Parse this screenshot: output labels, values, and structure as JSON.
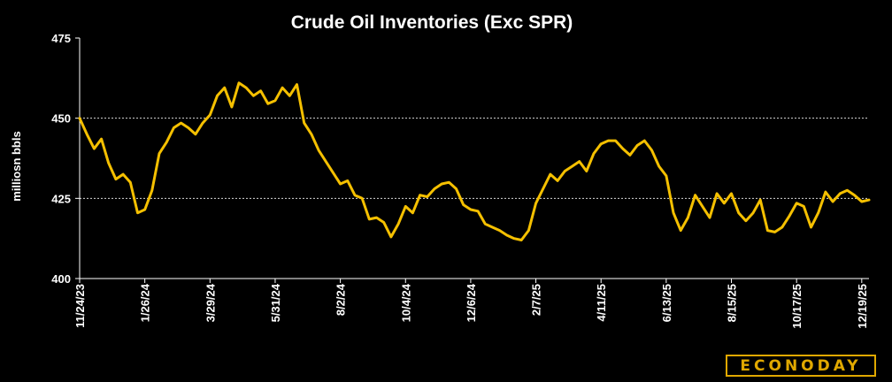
{
  "brand": {
    "name": "ECONODAY",
    "color": "#e0a800"
  },
  "chart_data": {
    "type": "line",
    "title": "Crude Oil Inventories (Exc SPR)",
    "ylabel": "milliosn bbls",
    "xlabel": "",
    "ylim": [
      400,
      475
    ],
    "yticks": [
      400,
      425,
      450,
      475
    ],
    "gridlines": [
      425,
      450
    ],
    "grid": true,
    "line_color": "#f5c000",
    "x_tick_labels": [
      "11/24/23",
      "1/26/24",
      "3/29/24",
      "5/31/24",
      "8/2/24",
      "10/4/24",
      "12/6/24",
      "2/7/25",
      "4/11/25",
      "6/13/25",
      "8/15/25",
      "10/17/25",
      "12/19/25"
    ],
    "series": [
      {
        "values": [
          450.0,
          445.0,
          440.5,
          443.5,
          436.0,
          431.0,
          432.5,
          430.0,
          420.5,
          421.5,
          427.5,
          439.0,
          442.5,
          447.0,
          448.5,
          447.0,
          445.0,
          448.5,
          451.0,
          457.0,
          459.5,
          453.5,
          461.0,
          459.5,
          457.0,
          458.5,
          454.5,
          455.5,
          459.5,
          457.0,
          460.5,
          448.5,
          445.0,
          440.0,
          436.5,
          433.0,
          429.5,
          430.5,
          426.0,
          425.0,
          418.5,
          419.0,
          417.5,
          413.0,
          417.0,
          422.5,
          420.5,
          426.0,
          425.5,
          428.0,
          429.5,
          430.0,
          428.0,
          423.0,
          421.5,
          421.0,
          417.0,
          416.0,
          415.0,
          413.5,
          412.5,
          412.0,
          415.0,
          423.5,
          428.0,
          432.5,
          430.5,
          433.5,
          435.0,
          436.5,
          433.5,
          439.0,
          442.0,
          443.0,
          443.0,
          440.5,
          438.5,
          441.5,
          443.0,
          440.0,
          435.0,
          432.0,
          420.5,
          415.0,
          419.0,
          426.0,
          422.5,
          419.0,
          426.5,
          423.5,
          426.5,
          420.5,
          418.0,
          420.5,
          424.5,
          415.0,
          414.5,
          416.0,
          419.5,
          423.5,
          422.5,
          416.0,
          420.5,
          427.0,
          424.0,
          426.5,
          427.5,
          426.0,
          424.0,
          424.5
        ]
      }
    ]
  }
}
